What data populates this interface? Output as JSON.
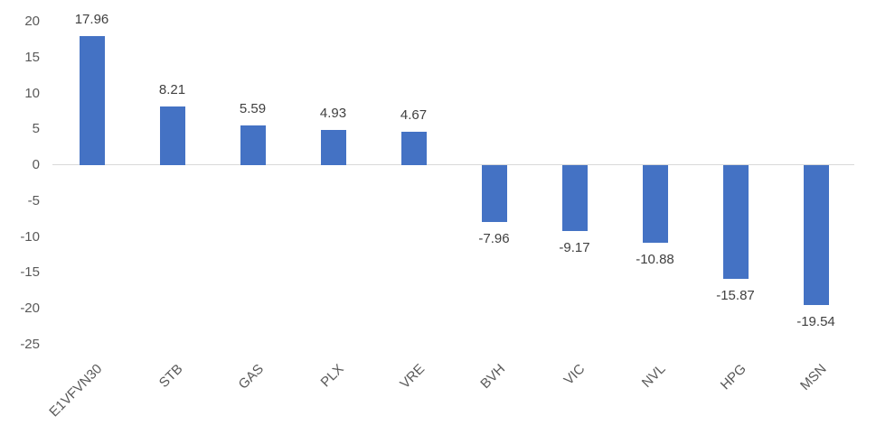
{
  "chart_data": {
    "type": "bar",
    "title": "",
    "xlabel": "",
    "ylabel": "",
    "categories": [
      "E1VFVN30",
      "STB",
      "GAS",
      "PLX",
      "VRE",
      "BVH",
      "VIC",
      "NVL",
      "HPG",
      "MSN"
    ],
    "values": [
      17.96,
      8.21,
      5.59,
      4.93,
      4.67,
      -7.96,
      -9.17,
      -10.88,
      -15.87,
      -19.54
    ],
    "data_labels": [
      "17.96",
      "8.21",
      "5.59",
      "4.93",
      "4.67",
      "-7.96",
      "-9.17",
      "-10.88",
      "-15.87",
      "-19.54"
    ],
    "yticks": [
      20,
      15,
      10,
      5,
      0,
      -5,
      -10,
      -15,
      -20,
      -25
    ],
    "ylim": [
      -25,
      20
    ],
    "grid": "zero-line-only",
    "legend": "none",
    "colors": {
      "bar": "#4472C4",
      "axis_line": "#D9D9D9",
      "tick_label": "#595959",
      "data_label": "#404040",
      "background": "#FFFFFF"
    }
  }
}
